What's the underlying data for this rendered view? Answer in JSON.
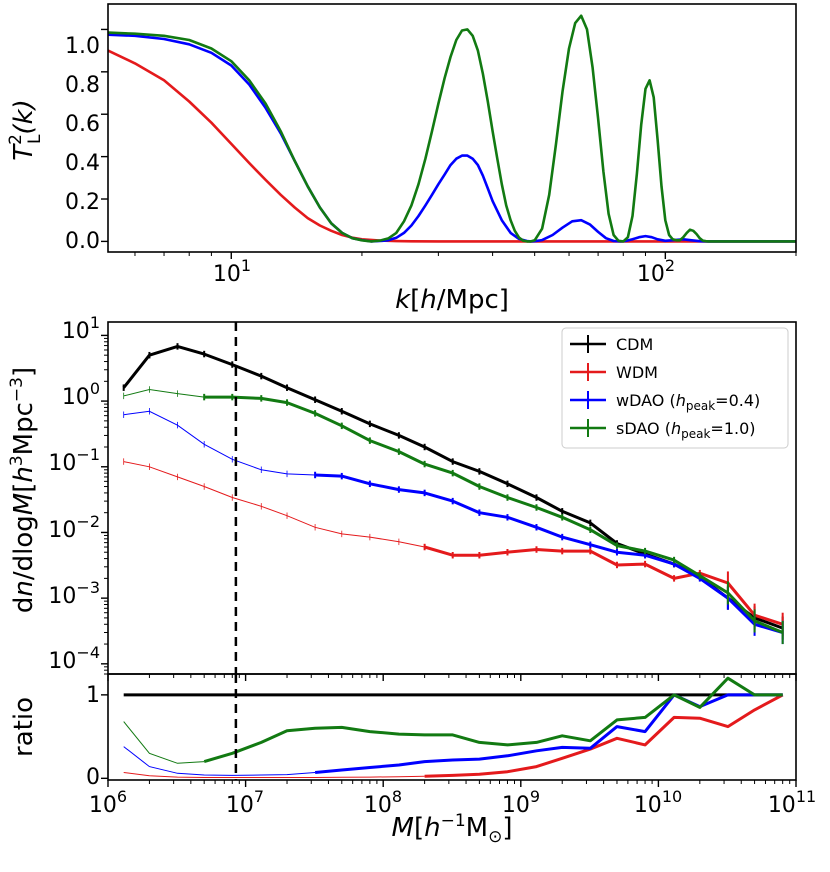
{
  "chart_data": [
    {
      "type": "line",
      "name": "transfer-function",
      "ylabel": "T_L^2(k)",
      "ylabel_parts": {
        "base": "T",
        "sup": "2",
        "sub": "L",
        "arg": "(k)"
      },
      "xlabel": "k[h/Mpc]",
      "xlabel_parts": {
        "k": "k",
        "open": "[",
        "h": "h",
        "rest": "/Mpc]"
      },
      "xscale": "log",
      "xlim": [
        5.2,
        200
      ],
      "ylim": [
        -0.05,
        1.12
      ],
      "xticks": [
        {
          "value": 10,
          "base": "10",
          "exp": "1"
        },
        {
          "value": 100,
          "base": "10",
          "exp": "2"
        }
      ],
      "yticks": [
        {
          "value": 0.0,
          "label": "0.0"
        },
        {
          "value": 0.2,
          "label": "0.2"
        },
        {
          "value": 0.4,
          "label": "0.4"
        },
        {
          "value": 0.6,
          "label": "0.6"
        },
        {
          "value": 0.8,
          "label": "0.8"
        },
        {
          "value": 1.0,
          "label": "1.0"
        }
      ],
      "series": [
        {
          "name": "WDM",
          "color": "#e41a1c",
          "x": [
            5.2,
            6,
            7,
            8,
            9,
            10,
            11,
            12,
            13,
            14,
            15,
            16,
            17,
            18,
            19,
            20,
            22,
            24,
            26,
            30,
            40,
            200
          ],
          "y": [
            0.9,
            0.84,
            0.76,
            0.66,
            0.56,
            0.46,
            0.37,
            0.29,
            0.22,
            0.16,
            0.11,
            0.075,
            0.05,
            0.03,
            0.018,
            0.01,
            0.004,
            0.0015,
            0.0005,
            0.0,
            0.0,
            0.0
          ]
        },
        {
          "name": "wDAO (h_peak=0.4)",
          "color": "#0000ff",
          "x": [
            5.2,
            6,
            7,
            8,
            9,
            10,
            11,
            12,
            13,
            14,
            15,
            16,
            17,
            18,
            19,
            20,
            21,
            22,
            23,
            24,
            25,
            26,
            27,
            28,
            29,
            30,
            31,
            32,
            33,
            34,
            35,
            36,
            37,
            38,
            39,
            40,
            42,
            44,
            46,
            48,
            49,
            50,
            52,
            55,
            58,
            61,
            64,
            67,
            70,
            73,
            76,
            79,
            81,
            84,
            87,
            90,
            93,
            96,
            100,
            105,
            110,
            115,
            120,
            125,
            130,
            140,
            200
          ],
          "y": [
            0.975,
            0.97,
            0.955,
            0.93,
            0.89,
            0.83,
            0.74,
            0.63,
            0.51,
            0.38,
            0.26,
            0.16,
            0.085,
            0.04,
            0.015,
            0.006,
            0.0,
            0.002,
            0.005,
            0.017,
            0.04,
            0.075,
            0.12,
            0.17,
            0.22,
            0.27,
            0.315,
            0.36,
            0.39,
            0.405,
            0.405,
            0.39,
            0.36,
            0.31,
            0.25,
            0.19,
            0.1,
            0.04,
            0.012,
            0.002,
            0.0,
            0.001,
            0.006,
            0.03,
            0.065,
            0.095,
            0.1,
            0.08,
            0.045,
            0.015,
            0.002,
            0.0,
            0.002,
            0.01,
            0.02,
            0.025,
            0.02,
            0.01,
            0.003,
            0.006,
            0.01,
            0.005,
            0.001,
            0.0,
            0.0,
            0.0,
            0.0
          ]
        },
        {
          "name": "sDAO (h_peak=1.0)",
          "color": "#127a12",
          "x": [
            5.2,
            6,
            7,
            8,
            9,
            10,
            11,
            12,
            13,
            14,
            15,
            16,
            17,
            18,
            19,
            20,
            21,
            22,
            23,
            24,
            25,
            26,
            27,
            28,
            29,
            30,
            31,
            32,
            33,
            34,
            35,
            36,
            37,
            38,
            39,
            40,
            41,
            42,
            43,
            44,
            45,
            46,
            47,
            48,
            49,
            50,
            52,
            54,
            56,
            58,
            60,
            62,
            64,
            66,
            68,
            70,
            72,
            74,
            76,
            78,
            80,
            82,
            84,
            86,
            88,
            90,
            92,
            94,
            96,
            98,
            100,
            102,
            104,
            106,
            108,
            110,
            112,
            114,
            116,
            118,
            120,
            122,
            124,
            126,
            128,
            130,
            140,
            200
          ],
          "y": [
            0.985,
            0.98,
            0.97,
            0.95,
            0.91,
            0.85,
            0.76,
            0.65,
            0.52,
            0.38,
            0.26,
            0.16,
            0.085,
            0.04,
            0.015,
            0.005,
            0.0,
            0.004,
            0.014,
            0.04,
            0.095,
            0.17,
            0.27,
            0.39,
            0.52,
            0.65,
            0.77,
            0.87,
            0.95,
            0.995,
            1.0,
            0.97,
            0.9,
            0.79,
            0.66,
            0.52,
            0.39,
            0.27,
            0.17,
            0.1,
            0.05,
            0.018,
            0.004,
            0.0,
            0.0,
            0.005,
            0.06,
            0.22,
            0.46,
            0.71,
            0.91,
            1.03,
            1.065,
            1.0,
            0.82,
            0.58,
            0.33,
            0.13,
            0.03,
            0.003,
            0.0,
            0.02,
            0.12,
            0.32,
            0.55,
            0.72,
            0.76,
            0.68,
            0.48,
            0.26,
            0.1,
            0.03,
            0.01,
            0.005,
            0.005,
            0.02,
            0.04,
            0.055,
            0.05,
            0.035,
            0.015,
            0.004,
            0.001,
            0.0,
            0.0,
            0.0,
            0.0,
            0.0
          ]
        }
      ]
    },
    {
      "type": "line",
      "name": "mass-function",
      "ylabel": "dn/dlogM[h^3Mpc^-3]",
      "ylabel_parts": {
        "d": "d",
        "n": "n",
        "mid": "/dlog",
        "M": "M",
        "open": "[",
        "h": "h",
        "h_sup": "3",
        "unit": "Mpc",
        "unit_sup": "−3",
        "close": "]"
      },
      "xscale": "log",
      "yscale": "log",
      "xlim": [
        1000000.0,
        100000000000.0
      ],
      "ylim": [
        7e-05,
        16
      ],
      "yticks": [
        {
          "value": 10,
          "base": "10",
          "exp": "1"
        },
        {
          "value": 1,
          "base": "10",
          "exp": "0"
        },
        {
          "value": 0.1,
          "base": "10",
          "exp": "−1"
        },
        {
          "value": 0.01,
          "base": "10",
          "exp": "−2"
        },
        {
          "value": 0.001,
          "base": "10",
          "exp": "−3"
        },
        {
          "value": 0.0001,
          "base": "10",
          "exp": "−4"
        }
      ],
      "vline_x": 8500000.0,
      "legend": {
        "location": "top-right",
        "entries": [
          {
            "label": "CDM",
            "color": "#000000"
          },
          {
            "label": "WDM",
            "color": "#e41a1c"
          },
          {
            "label_main": "wDAO (",
            "h": "h",
            "sub": "peak",
            "rest": "=0.4)",
            "color": "#0000ff"
          },
          {
            "label_main": "sDAO (",
            "h": "h",
            "sub": "peak",
            "rest": "=1.0)",
            "color": "#127a12"
          }
        ]
      },
      "series": [
        {
          "name": "CDM",
          "color": "#000000",
          "x": [
            1300000.0,
            2000000.0,
            3200000.0,
            5000000.0,
            8000000.0,
            13000000.0,
            20000000.0,
            32000000.0,
            50000000.0,
            80000000.0,
            130000000.0,
            200000000.0,
            320000000.0,
            500000000.0,
            800000000.0,
            1300000000.0,
            2000000000.0,
            3200000000.0,
            5000000000.0,
            8000000000.0,
            13000000000.0,
            20000000000.0,
            32000000000.0,
            50000000000.0,
            80000000000.0
          ],
          "y": [
            1.6,
            5.0,
            6.8,
            5.2,
            3.6,
            2.4,
            1.6,
            1.05,
            0.7,
            0.45,
            0.3,
            0.2,
            0.12,
            0.085,
            0.055,
            0.034,
            0.021,
            0.014,
            0.0068,
            0.0047,
            0.0033,
            0.0021,
            0.001,
            0.0005,
            0.00035
          ],
          "thin_until": 0
        },
        {
          "name": "WDM",
          "color": "#e41a1c",
          "x": [
            1300000.0,
            2000000.0,
            3200000.0,
            5000000.0,
            8000000.0,
            13000000.0,
            20000000.0,
            32000000.0,
            50000000.0,
            80000000.0,
            130000000.0,
            200000000.0,
            320000000.0,
            500000000.0,
            800000000.0,
            1300000000.0,
            2000000000.0,
            3200000000.0,
            5000000000.0,
            8000000000.0,
            13000000000.0,
            20000000000.0,
            32000000000.0,
            50000000000.0,
            80000000000.0
          ],
          "y": [
            0.12,
            0.1,
            0.07,
            0.05,
            0.034,
            0.025,
            0.018,
            0.012,
            0.0095,
            0.0085,
            0.0072,
            0.006,
            0.0045,
            0.0045,
            0.005,
            0.0055,
            0.0052,
            0.0052,
            0.0032,
            0.0033,
            0.002,
            0.0024,
            0.0017,
            0.00055,
            0.0004
          ],
          "thin_until": 11
        },
        {
          "name": "wDAO",
          "color": "#0000ff",
          "x": [
            1300000.0,
            2000000.0,
            3200000.0,
            5000000.0,
            8000000.0,
            13000000.0,
            20000000.0,
            32000000.0,
            50000000.0,
            80000000.0,
            130000000.0,
            200000000.0,
            320000000.0,
            500000000.0,
            800000000.0,
            1300000000.0,
            2000000000.0,
            3200000000.0,
            5000000000.0,
            8000000000.0,
            13000000000.0,
            20000000000.0,
            32000000000.0,
            50000000000.0,
            80000000000.0
          ],
          "y": [
            0.62,
            0.7,
            0.43,
            0.22,
            0.13,
            0.09,
            0.078,
            0.075,
            0.072,
            0.055,
            0.045,
            0.04,
            0.03,
            0.02,
            0.017,
            0.012,
            0.0085,
            0.0065,
            0.005,
            0.0045,
            0.0033,
            0.002,
            0.001,
            0.0004,
            0.0003
          ],
          "thin_until": 7
        },
        {
          "name": "sDAO",
          "color": "#127a12",
          "x": [
            1300000.0,
            2000000.0,
            3200000.0,
            5000000.0,
            8000000.0,
            13000000.0,
            20000000.0,
            32000000.0,
            50000000.0,
            80000000.0,
            130000000.0,
            200000000.0,
            320000000.0,
            500000000.0,
            800000000.0,
            1300000000.0,
            2000000000.0,
            3200000000.0,
            5000000000.0,
            8000000000.0,
            13000000000.0,
            20000000000.0,
            32000000000.0,
            50000000000.0,
            80000000000.0
          ],
          "y": [
            1.2,
            1.5,
            1.3,
            1.15,
            1.15,
            1.1,
            0.95,
            0.65,
            0.42,
            0.25,
            0.17,
            0.11,
            0.08,
            0.05,
            0.034,
            0.024,
            0.017,
            0.011,
            0.0063,
            0.0052,
            0.0038,
            0.0022,
            0.0012,
            0.00045,
            0.0003
          ],
          "thin_until": 3
        }
      ]
    },
    {
      "type": "line",
      "name": "ratio",
      "ylabel": "ratio",
      "xlabel": "M[h^-1 M_sun]",
      "xlabel_parts": {
        "M": "M",
        "open": "[",
        "h": "h",
        "h_sup": "−1",
        "unit": "M",
        "unit_sub": "⊙",
        "close": "]"
      },
      "xscale": "log",
      "xlim": [
        1000000.0,
        100000000000.0
      ],
      "ylim": [
        -0.02,
        1.25
      ],
      "xticks": [
        {
          "value": 1000000.0,
          "base": "10",
          "exp": "6"
        },
        {
          "value": 10000000.0,
          "base": "10",
          "exp": "7"
        },
        {
          "value": 100000000.0,
          "base": "10",
          "exp": "8"
        },
        {
          "value": 1000000000.0,
          "base": "10",
          "exp": "9"
        },
        {
          "value": 10000000000.0,
          "base": "10",
          "exp": "10"
        },
        {
          "value": 100000000000.0,
          "base": "10",
          "exp": "11"
        }
      ],
      "yticks": [
        {
          "value": 0,
          "label": "0"
        },
        {
          "value": 1,
          "label": "1"
        }
      ],
      "vline_x": 8500000.0,
      "series": [
        {
          "name": "CDM",
          "color": "#000000",
          "x": [
            1300000.0,
            80000000000.0
          ],
          "y": [
            1.0,
            1.0
          ],
          "thin_until": 0
        },
        {
          "name": "WDM",
          "color": "#e41a1c",
          "x": [
            1300000.0,
            2000000.0,
            3200000.0,
            5000000.0,
            8000000.0,
            13000000.0,
            20000000.0,
            32000000.0,
            50000000.0,
            80000000.0,
            130000000.0,
            200000000.0,
            320000000.0,
            500000000.0,
            800000000.0,
            1300000000.0,
            2000000000.0,
            3200000000.0,
            5000000000.0,
            8000000000.0,
            13000000000.0,
            20000000000.0,
            32000000000.0,
            50000000000.0,
            80000000000.0
          ],
          "y": [
            0.07,
            0.03,
            0.015,
            0.01,
            0.01,
            0.01,
            0.01,
            0.01,
            0.012,
            0.015,
            0.02,
            0.025,
            0.035,
            0.05,
            0.08,
            0.14,
            0.24,
            0.35,
            0.48,
            0.4,
            0.73,
            0.72,
            0.62,
            0.82,
            1.0
          ],
          "thin_until": 11
        },
        {
          "name": "wDAO",
          "color": "#0000ff",
          "x": [
            1300000.0,
            2000000.0,
            3200000.0,
            5000000.0,
            8000000.0,
            13000000.0,
            20000000.0,
            32000000.0,
            50000000.0,
            80000000.0,
            130000000.0,
            200000000.0,
            320000000.0,
            500000000.0,
            800000000.0,
            1300000000.0,
            2000000000.0,
            3200000000.0,
            5000000000.0,
            8000000000.0,
            13000000000.0,
            20000000000.0,
            32000000000.0,
            50000000000.0,
            80000000000.0
          ],
          "y": [
            0.38,
            0.14,
            0.06,
            0.04,
            0.035,
            0.04,
            0.045,
            0.07,
            0.1,
            0.13,
            0.16,
            0.2,
            0.22,
            0.23,
            0.27,
            0.33,
            0.37,
            0.36,
            0.62,
            0.56,
            1.0,
            0.86,
            1.0,
            1.0,
            1.0
          ],
          "thin_until": 7
        },
        {
          "name": "sDAO",
          "color": "#127a12",
          "x": [
            1300000.0,
            2000000.0,
            3200000.0,
            5000000.0,
            8000000.0,
            13000000.0,
            20000000.0,
            32000000.0,
            50000000.0,
            80000000.0,
            130000000.0,
            200000000.0,
            320000000.0,
            500000000.0,
            800000000.0,
            1300000000.0,
            2000000000.0,
            3200000000.0,
            5000000000.0,
            8000000000.0,
            13000000000.0,
            20000000000.0,
            32000000000.0,
            50000000000.0,
            80000000000.0
          ],
          "y": [
            0.68,
            0.3,
            0.18,
            0.2,
            0.3,
            0.43,
            0.57,
            0.6,
            0.61,
            0.56,
            0.53,
            0.52,
            0.52,
            0.43,
            0.4,
            0.43,
            0.51,
            0.45,
            0.7,
            0.73,
            1.0,
            0.85,
            1.2,
            1.0,
            1.0
          ],
          "thin_until": 3
        }
      ]
    }
  ]
}
